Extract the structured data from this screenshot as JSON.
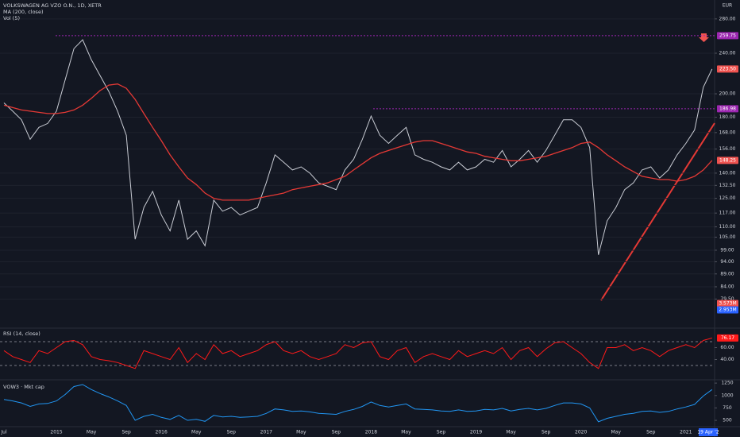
{
  "header": {
    "symbol": "VOLKSWAGEN AG VZO O.N., 1D, XETR"
  },
  "chart_data": [
    {
      "type": "line",
      "currency": "EUR",
      "log_scale": true,
      "grid": true,
      "volume_title": "Vol (5)",
      "categories": [
        "Jul",
        null,
        null,
        null,
        null,
        null,
        "2015",
        null,
        null,
        null,
        "May",
        null,
        null,
        null,
        "Sep",
        null,
        null,
        null,
        "2016",
        null,
        null,
        null,
        "May",
        null,
        null,
        null,
        "Sep",
        null,
        null,
        null,
        "2017",
        null,
        null,
        null,
        "May",
        null,
        null,
        null,
        "Sep",
        null,
        null,
        null,
        "2018",
        null,
        null,
        null,
        "May",
        null,
        null,
        null,
        "Sep",
        null,
        null,
        null,
        "2019",
        null,
        null,
        null,
        "May",
        null,
        null,
        null,
        "Sep",
        null,
        null,
        null,
        "2020",
        null,
        null,
        null,
        "May",
        null,
        null,
        null,
        "Sep",
        null,
        null,
        null,
        "2021",
        null,
        null,
        null
      ],
      "ylim": [
        70,
        300
      ],
      "yticks": [
        {
          "value": 280,
          "label": "280.00"
        },
        {
          "value": 240,
          "label": "240.00"
        },
        {
          "value": 200,
          "label": "200.00"
        },
        {
          "value": 180,
          "label": "180.00"
        },
        {
          "value": 168,
          "label": "168.00"
        },
        {
          "value": 156,
          "label": "156.00"
        },
        {
          "value": 140,
          "label": "140.00"
        },
        {
          "value": 132.5,
          "label": "132.50"
        },
        {
          "value": 125,
          "label": "125.00"
        },
        {
          "value": 117,
          "label": "117.00"
        },
        {
          "value": 110,
          "label": "110.00"
        },
        {
          "value": 105,
          "label": "105.00"
        },
        {
          "value": 99,
          "label": "99.00"
        },
        {
          "value": 94,
          "label": "94.00"
        },
        {
          "value": 89,
          "label": "89.00"
        },
        {
          "value": 84,
          "label": "84.00"
        },
        {
          "value": 79.5,
          "label": "79.50"
        }
      ],
      "levels": [
        259.75,
        186.98
      ],
      "level_color": "#9c27b0",
      "last_label": "223.50",
      "volume_labels": [
        "3.573M",
        "2.953M"
      ],
      "series": [
        {
          "color": "#c9ccd4",
          "values": [
            192,
            185,
            178,
            163,
            172,
            175,
            185,
            213,
            245,
            255,
            233,
            217,
            202,
            185,
            166,
            104,
            120,
            129,
            116,
            108,
            124,
            104,
            108,
            101,
            124,
            118,
            120,
            116,
            118,
            120,
            134,
            152,
            147,
            142,
            144,
            140,
            134,
            132,
            130,
            142,
            149,
            163,
            181,
            166,
            160,
            166,
            172,
            152,
            149,
            147,
            144,
            142,
            147,
            142,
            144,
            149,
            147,
            155,
            144,
            149,
            155,
            147,
            155,
            166,
            178,
            178,
            172,
            157,
            97,
            113,
            120,
            130,
            134,
            142,
            144,
            137,
            142,
            152,
            160,
            170,
            206,
            223.5
          ]
        },
        {
          "name": "MA (200, close)",
          "color": "#e53935",
          "values": [
            190,
            188,
            186,
            185,
            184,
            183,
            183,
            184,
            186,
            190,
            196,
            203,
            208,
            209,
            205,
            195,
            183,
            172,
            162,
            152,
            144,
            137,
            133,
            128,
            125,
            124,
            124,
            124,
            124,
            125,
            126,
            127,
            128,
            130,
            131,
            132,
            133,
            134,
            136,
            138,
            142,
            146,
            150,
            153,
            155,
            157,
            159,
            161,
            162,
            162,
            160,
            158,
            156,
            154,
            153,
            151,
            150,
            149,
            148,
            148,
            149,
            150,
            151,
            153,
            155,
            157,
            160,
            161,
            157,
            152,
            148,
            144,
            141,
            138,
            137,
            136,
            136,
            135,
            136,
            138,
            142,
            148.25
          ]
        }
      ]
    },
    {
      "type": "line",
      "title": "RSI (14, close)",
      "ylim": [
        10,
        90
      ],
      "yticks": [
        {
          "value": 60,
          "label": "60.00"
        },
        {
          "value": 40,
          "label": "40.00"
        }
      ],
      "levels": [
        70,
        30
      ],
      "series": [
        {
          "color": "#ff1a1a",
          "values": [
            55,
            45,
            40,
            35,
            55,
            50,
            60,
            70,
            72,
            65,
            45,
            40,
            38,
            35,
            30,
            25,
            55,
            50,
            45,
            40,
            60,
            35,
            50,
            40,
            65,
            50,
            55,
            45,
            50,
            55,
            65,
            70,
            55,
            50,
            55,
            45,
            40,
            45,
            50,
            65,
            60,
            68,
            70,
            45,
            40,
            55,
            60,
            35,
            45,
            50,
            45,
            40,
            55,
            45,
            50,
            55,
            50,
            60,
            40,
            55,
            60,
            45,
            58,
            68,
            70,
            60,
            50,
            35,
            25,
            60,
            60,
            65,
            55,
            60,
            55,
            45,
            55,
            60,
            65,
            60,
            72,
            76.17
          ]
        }
      ]
    },
    {
      "type": "line",
      "title": "VOW3 · Mkt cap",
      "ylim": [
        400,
        1300
      ],
      "yticks": [
        500,
        750,
        1000,
        1250
      ],
      "series": [
        {
          "color": "#2196f3",
          "values": [
            920,
            890,
            850,
            780,
            830,
            840,
            890,
            1020,
            1180,
            1220,
            1120,
            1040,
            970,
            890,
            800,
            500,
            580,
            620,
            560,
            520,
            600,
            500,
            520,
            480,
            600,
            570,
            580,
            560,
            570,
            580,
            640,
            730,
            710,
            680,
            690,
            670,
            640,
            630,
            620,
            680,
            720,
            780,
            870,
            800,
            770,
            800,
            830,
            730,
            720,
            710,
            690,
            680,
            710,
            680,
            690,
            720,
            710,
            740,
            690,
            720,
            740,
            710,
            740,
            800,
            850,
            850,
            830,
            750,
            470,
            540,
            580,
            620,
            640,
            680,
            690,
            660,
            680,
            730,
            770,
            820,
            990,
            1120
          ]
        }
      ]
    }
  ],
  "cursor_date": "19 Apr '2"
}
